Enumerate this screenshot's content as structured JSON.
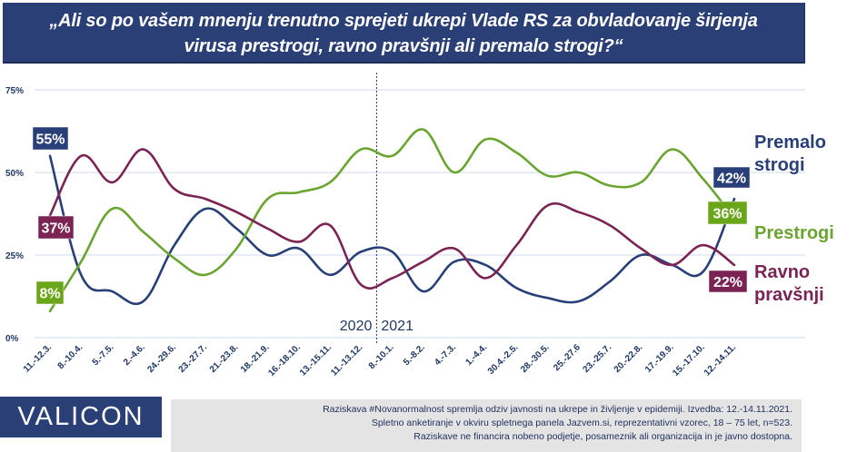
{
  "title": {
    "line1": "„Ali so po vašem mnenju trenutno sprejeti ukrepi Vlade RS za obvladovanje širjenja",
    "line2": "virusa prestrogi, ravno pravšnji ali premalo strogi?“"
  },
  "chart_data": {
    "type": "line",
    "title": "„Ali so po vašem mnenju trenutno sprejeti ukrepi Vlade RS za obvladovanje širjenja virusa prestrogi, ravno pravšnji ali premalo strogi?“",
    "xlabel": "",
    "ylabel": "",
    "ylim": [
      0,
      75
    ],
    "yticks": [
      "0%",
      "25%",
      "50%",
      "75%"
    ],
    "ytick_values": [
      0,
      25,
      50,
      75
    ],
    "grid": true,
    "legend_placement": "right",
    "categories": [
      "11.-12.3.",
      "8.-10.4.",
      "5.-7.5.",
      "2.-4.6.",
      "24.-29.6.",
      "23.-27.7.",
      "21.-23.8.",
      "18.-21.9.",
      "16.-18.10.",
      "13.-15.11.",
      "11.-13.12.",
      "8.-10.1.",
      "5.-8.2.",
      "4.-7.3.",
      "1.-4.4.",
      "30.4.-2.5.",
      "28.-30.5.",
      "25.-27.6",
      "23.-25.7.",
      "20.-22.8.",
      "17.-19.9.",
      "15.-17.10.",
      "12.-14.11."
    ],
    "year_divider": {
      "after_category": "11.-13.12.",
      "left_label": "2020",
      "right_label": "2021"
    },
    "series": [
      {
        "name": "Premalo strogi",
        "legend_lines": [
          "Premalo",
          "strogi"
        ],
        "color": "#283f78",
        "values": [
          55,
          19,
          14,
          11,
          28,
          39,
          33,
          25,
          27,
          19,
          26,
          26,
          14,
          23,
          22,
          15,
          12,
          11,
          17,
          25,
          22,
          20,
          42
        ],
        "start_label": "55%",
        "end_label": "42%"
      },
      {
        "name": "Prestrogi",
        "legend_lines": [
          "Prestrogi"
        ],
        "color": "#6aa531",
        "label_color": "#6ba51a",
        "values": [
          8,
          23,
          39,
          32,
          24,
          19,
          27,
          42,
          44,
          47,
          57,
          55,
          63,
          50,
          60,
          56,
          49,
          50,
          46,
          47,
          57,
          48,
          36
        ],
        "start_label": "8%",
        "end_label": "36%"
      },
      {
        "name": "Ravno pravšnji",
        "legend_lines": [
          "Ravno",
          "pravšnji"
        ],
        "color": "#7b2454",
        "values": [
          37,
          55,
          47,
          57,
          45,
          42,
          38,
          33,
          29,
          34,
          16,
          18,
          23,
          27,
          18,
          28,
          40,
          38,
          34,
          27,
          22,
          28,
          22
        ],
        "start_label": "37%",
        "end_label": "22%"
      }
    ]
  },
  "logo": {
    "text": "VALICON"
  },
  "footer": {
    "line1": "Raziskava #Novanormalnost spremlja odziv javnosti na ukrepe in življenje v epidemiji. Izvedba: 12.-14.11.2021.",
    "line2": "Spletno anketiranje v okviru spletnega panela Jazvem.si, reprezentativni vzorec, 18 – 75 let, n=523.",
    "line3": "Raziskave ne financira nobeno podjetje, posameznik ali organizacija in je javno dostopna."
  }
}
